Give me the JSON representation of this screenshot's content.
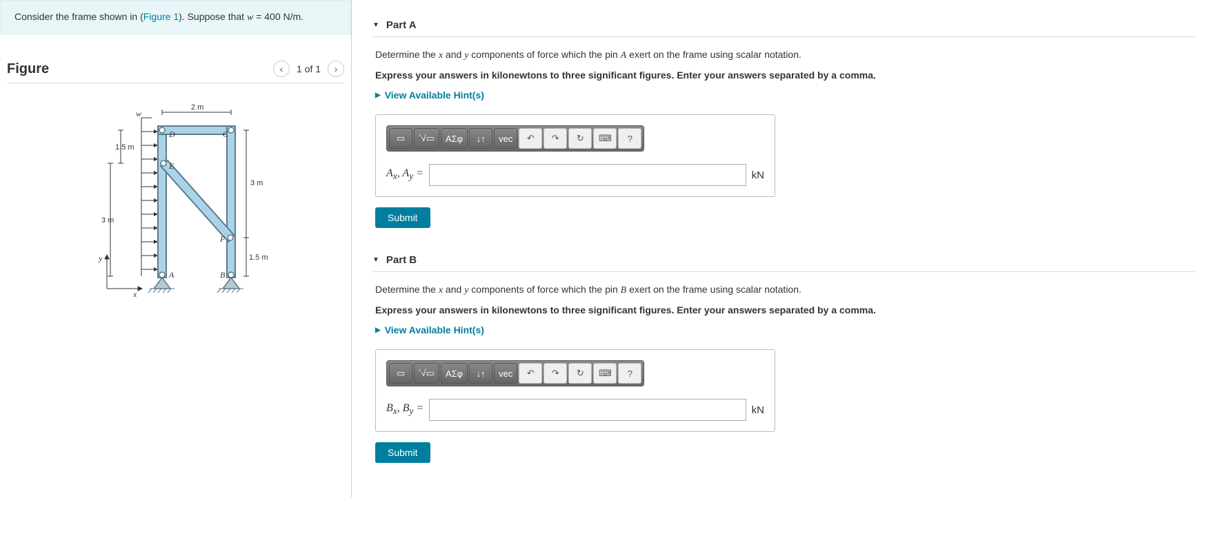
{
  "problem": {
    "prefix": "Consider the frame shown in (",
    "figure_link": "Figure 1",
    "middle": "). Suppose that ",
    "var": "w",
    "equals": " = 400 ",
    "unit": "N/m",
    "suffix": "."
  },
  "figure": {
    "title": "Figure",
    "counter": "1 of 1",
    "labels": {
      "w": "w",
      "D": "D",
      "C": "C",
      "E": "E",
      "F": "F",
      "A": "A",
      "B": "B",
      "d_2m": "2 m",
      "d_1_5m_top": "1.5 m",
      "d_3m_left": "3 m",
      "d_3m_right": "3 m",
      "d_1_5m_bot": "1.5 m",
      "x": "x",
      "y": "y"
    }
  },
  "toolbar": {
    "templates": "▭",
    "sqrt": "√▭",
    "greek": "ΑΣφ",
    "scripts": "↓↑",
    "vec": "vec",
    "undo": "↶",
    "redo": "↷",
    "reset": "↻",
    "keyboard": "⌨",
    "help": "?"
  },
  "partA": {
    "title": "Part A",
    "q1_pre": "Determine the ",
    "q1_x": "x",
    "q1_and": " and ",
    "q1_y": "y",
    "q1_mid": " components of force which the pin ",
    "q1_pin": "A",
    "q1_post": " exert on the frame using scalar notation.",
    "q2": "Express your answers in kilonewtons to three significant figures. Enter your answers separated by a comma.",
    "hints": "View Available Hint(s)",
    "label_html": "A<sub>x</sub>, A<sub>y</sub> =",
    "unit": "kN",
    "submit": "Submit"
  },
  "partB": {
    "title": "Part B",
    "q1_pre": "Determine the ",
    "q1_x": "x",
    "q1_and": " and ",
    "q1_y": "y",
    "q1_mid": " components of force which the pin ",
    "q1_pin": "B",
    "q1_post": " exert on the frame using scalar notation.",
    "q2": "Express your answers in kilonewtons to three significant figures. Enter your answers separated by a comma.",
    "hints": "View Available Hint(s)",
    "label_html": "B<sub>x</sub>, B<sub>y</sub> =",
    "unit": "kN",
    "submit": "Submit"
  },
  "colors": {
    "accent": "#007e9e",
    "box_bg": "#e8f6f8",
    "beam_fill": "#a9d4e8",
    "beam_stroke": "#5a7a8a"
  }
}
